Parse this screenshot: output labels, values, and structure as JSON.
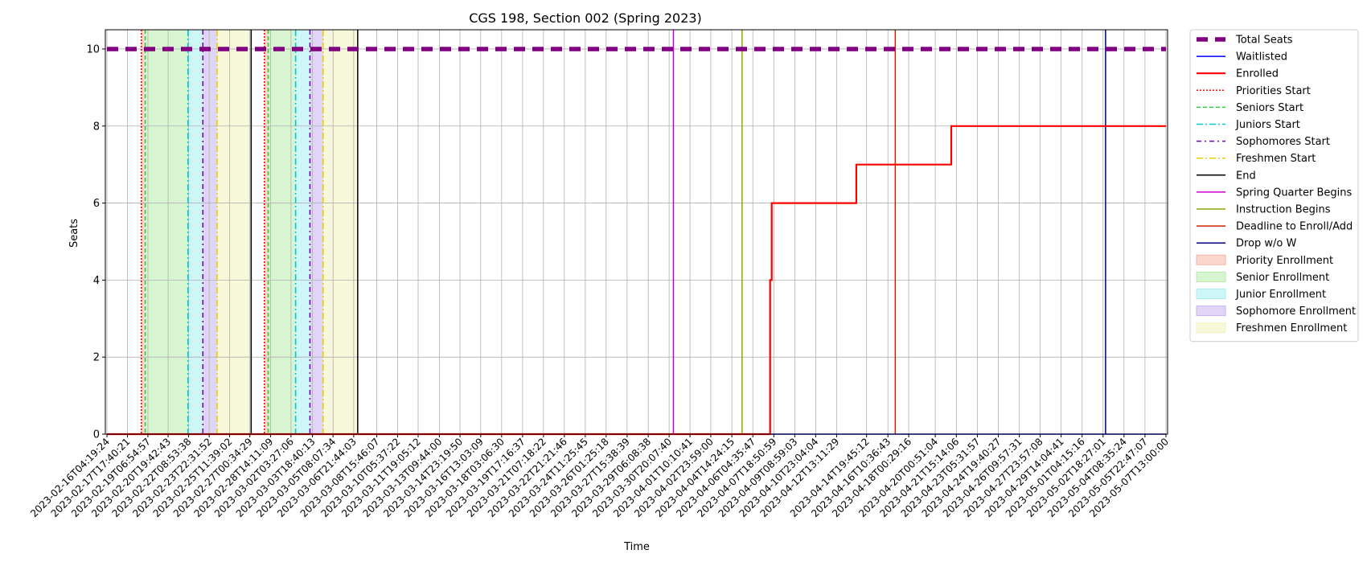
{
  "chart_data": {
    "type": "line",
    "title": "CGS 198, Section 002 (Spring 2023)",
    "xlabel": "Time",
    "ylabel": "Seats",
    "ylim": [
      0,
      10.5
    ],
    "xlim": [
      "2023-02-16T04:19:24",
      "2023-05-07T13:00:00"
    ],
    "yticks": [
      0,
      2,
      4,
      6,
      8,
      10
    ],
    "xticks": [
      "2023-02-16T04:19:24",
      "2023-02-17T17:40:21",
      "2023-02-19T06:54:57",
      "2023-02-20T19:42:43",
      "2023-02-22T08:53:38",
      "2023-02-23T22:31:52",
      "2023-02-25T11:39:02",
      "2023-02-27T00:34:29",
      "2023-02-28T14:11:09",
      "2023-03-02T03:27:06",
      "2023-03-03T18:40:13",
      "2023-03-05T08:07:34",
      "2023-03-06T21:44:03",
      "2023-03-08T15:46:07",
      "2023-03-10T05:37:22",
      "2023-03-11T19:05:12",
      "2023-03-13T09:44:00",
      "2023-03-14T23:19:50",
      "2023-03-16T13:03:09",
      "2023-03-18T03:06:30",
      "2023-03-19T17:16:37",
      "2023-03-21T07:18:22",
      "2023-03-22T21:21:46",
      "2023-03-24T11:25:45",
      "2023-03-26T01:25:18",
      "2023-03-27T15:38:39",
      "2023-03-29T06:08:38",
      "2023-03-30T20:07:40",
      "2023-04-01T10:10:41",
      "2023-04-02T23:59:00",
      "2023-04-04T14:24:15",
      "2023-04-06T04:35:47",
      "2023-04-07T18:50:59",
      "2023-04-09T08:59:03",
      "2023-04-10T23:04:04",
      "2023-04-12T13:11:29",
      "2023-04-14T19:45:12",
      "2023-04-16T10:36:43",
      "2023-04-18T00:29:16",
      "2023-04-20T00:51:04",
      "2023-04-21T15:14:06",
      "2023-04-23T05:31:57",
      "2023-04-24T19:40:27",
      "2023-04-26T09:57:31",
      "2023-04-27T23:57:08",
      "2023-04-29T14:04:41",
      "2023-05-01T04:15:16",
      "2023-05-02T18:27:01",
      "2023-05-04T08:35:24",
      "2023-05-05T22:47:07",
      "2023-05-07T13:00:00"
    ],
    "grid": true,
    "legend_position": "outside-right",
    "series": [
      {
        "name": "Total Seats",
        "style": "dashed-thick",
        "color": "#800080",
        "points": [
          [
            "2023-02-16T04:19:24",
            10
          ],
          [
            "2023-05-07T13:00:00",
            10
          ]
        ]
      },
      {
        "name": "Waitlisted",
        "style": "solid",
        "color": "#0000ff",
        "points": [
          [
            "2023-02-16T04:19:24",
            0
          ],
          [
            "2023-05-07T13:00:00",
            0
          ]
        ]
      },
      {
        "name": "Enrolled",
        "style": "step-solid-thick",
        "color": "#ff0000",
        "points": [
          [
            "2023-02-16T04:19:24",
            0
          ],
          [
            "2023-04-07T12:00:00",
            0
          ],
          [
            "2023-04-07T12:00:00",
            4
          ],
          [
            "2023-04-07T15:00:00",
            4
          ],
          [
            "2023-04-07T15:00:00",
            6
          ],
          [
            "2023-04-14T01:00:00",
            6
          ],
          [
            "2023-04-14T01:00:00",
            7
          ],
          [
            "2023-04-21T06:00:00",
            7
          ],
          [
            "2023-04-21T06:00:00",
            8
          ],
          [
            "2023-05-07T13:00:00",
            8
          ]
        ]
      }
    ],
    "vertical_lines": [
      {
        "legend": "Priorities Start",
        "color": "#ff0000",
        "style": "dotted",
        "x": [
          "2023-02-18T19:00:00",
          "2023-02-28T03:00:00"
        ]
      },
      {
        "legend": "Seniors Start",
        "color": "#33cc33",
        "style": "dashed",
        "x": [
          "2023-02-19T02:00:00",
          "2023-02-28T10:00:00"
        ]
      },
      {
        "legend": "Juniors Start",
        "color": "#00cccc",
        "style": "dashdot",
        "x": [
          "2023-02-22T08:00:00",
          "2023-03-02T12:00:00"
        ]
      },
      {
        "legend": "Sophomores Start",
        "color": "#6a0dad",
        "style": "dashdot-dense",
        "x": [
          "2023-02-23T11:00:00",
          "2023-03-03T14:00:00"
        ]
      },
      {
        "legend": "Freshmen Start",
        "color": "#e6d200",
        "style": "dashdot",
        "x": [
          "2023-02-24T13:00:00",
          "2023-03-04T14:00:00"
        ]
      },
      {
        "legend": "End",
        "color": "#000000",
        "style": "solid",
        "x": [
          "2023-02-27T03:00:00",
          "2023-03-07T05:00:00"
        ]
      },
      {
        "legend": "Spring Quarter Begins",
        "color": "#cc00cc",
        "style": "solid",
        "x": [
          "2023-03-31T04:00:00"
        ]
      },
      {
        "legend": "Instruction Begins",
        "color": "#88aa00",
        "style": "solid",
        "x": [
          "2023-04-05T09:00:00"
        ]
      },
      {
        "legend": "Deadline to Enroll/Add",
        "color": "#cc2200",
        "style": "solid",
        "x": [
          "2023-04-17T00:00:00"
        ]
      },
      {
        "legend": "Drop w/o W",
        "color": "#000080",
        "style": "solid",
        "x": [
          "2023-05-02T23:00:00"
        ]
      }
    ],
    "spans": [
      {
        "legend": "Priority Enrollment",
        "color": "#f4b7a3",
        "ranges": [
          [
            "2023-02-18T19:00:00",
            "2023-02-19T02:00:00"
          ],
          [
            "2023-02-28T03:00:00",
            "2023-02-28T10:00:00"
          ]
        ]
      },
      {
        "legend": "Senior Enrollment",
        "color": "#b7ecaa",
        "ranges": [
          [
            "2023-02-19T02:00:00",
            "2023-02-22T08:00:00"
          ],
          [
            "2023-02-28T10:00:00",
            "2023-03-02T12:00:00"
          ]
        ]
      },
      {
        "legend": "Junior Enrollment",
        "color": "#a7eeee",
        "ranges": [
          [
            "2023-02-22T08:00:00",
            "2023-02-23T11:00:00"
          ],
          [
            "2023-03-02T12:00:00",
            "2023-03-03T14:00:00"
          ]
        ]
      },
      {
        "legend": "Sophomore Enrollment",
        "color": "#c7b3ee",
        "ranges": [
          [
            "2023-02-23T11:00:00",
            "2023-02-24T13:00:00"
          ],
          [
            "2023-03-03T14:00:00",
            "2023-03-04T14:00:00"
          ]
        ]
      },
      {
        "legend": "Freshmen Enrollment",
        "color": "#f1f3b9",
        "ranges": [
          [
            "2023-02-24T13:00:00",
            "2023-02-27T03:00:00"
          ],
          [
            "2023-03-04T14:00:00",
            "2023-03-07T05:00:00"
          ]
        ]
      }
    ],
    "legend": [
      {
        "label": "Total Seats",
        "kind": "line",
        "color": "#800080",
        "style": "dashed-thick"
      },
      {
        "label": "Waitlisted",
        "kind": "line",
        "color": "#0000ff",
        "style": "solid"
      },
      {
        "label": "Enrolled",
        "kind": "line",
        "color": "#ff0000",
        "style": "solid-thick"
      },
      {
        "label": "Priorities Start",
        "kind": "line",
        "color": "#ff0000",
        "style": "dotted"
      },
      {
        "label": "Seniors Start",
        "kind": "line",
        "color": "#33cc33",
        "style": "dashed"
      },
      {
        "label": "Juniors Start",
        "kind": "line",
        "color": "#00cccc",
        "style": "dashdot"
      },
      {
        "label": "Sophomores Start",
        "kind": "line",
        "color": "#6a0dad",
        "style": "dashdot-dense"
      },
      {
        "label": "Freshmen Start",
        "kind": "line",
        "color": "#e6d200",
        "style": "dashdot"
      },
      {
        "label": "End",
        "kind": "line",
        "color": "#000000",
        "style": "solid"
      },
      {
        "label": "Spring Quarter Begins",
        "kind": "line",
        "color": "#cc00cc",
        "style": "solid"
      },
      {
        "label": "Instruction Begins",
        "kind": "line",
        "color": "#88aa00",
        "style": "solid"
      },
      {
        "label": "Deadline to Enroll/Add",
        "kind": "line",
        "color": "#cc2200",
        "style": "solid"
      },
      {
        "label": "Drop w/o W",
        "kind": "line",
        "color": "#000080",
        "style": "solid"
      },
      {
        "label": "Priority Enrollment",
        "kind": "patch",
        "color": "#f4b7a3"
      },
      {
        "label": "Senior Enrollment",
        "kind": "patch",
        "color": "#b7ecaa"
      },
      {
        "label": "Junior Enrollment",
        "kind": "patch",
        "color": "#a7eeee"
      },
      {
        "label": "Sophomore Enrollment",
        "kind": "patch",
        "color": "#c7b3ee"
      },
      {
        "label": "Freshmen Enrollment",
        "kind": "patch",
        "color": "#f1f3b9"
      }
    ]
  }
}
